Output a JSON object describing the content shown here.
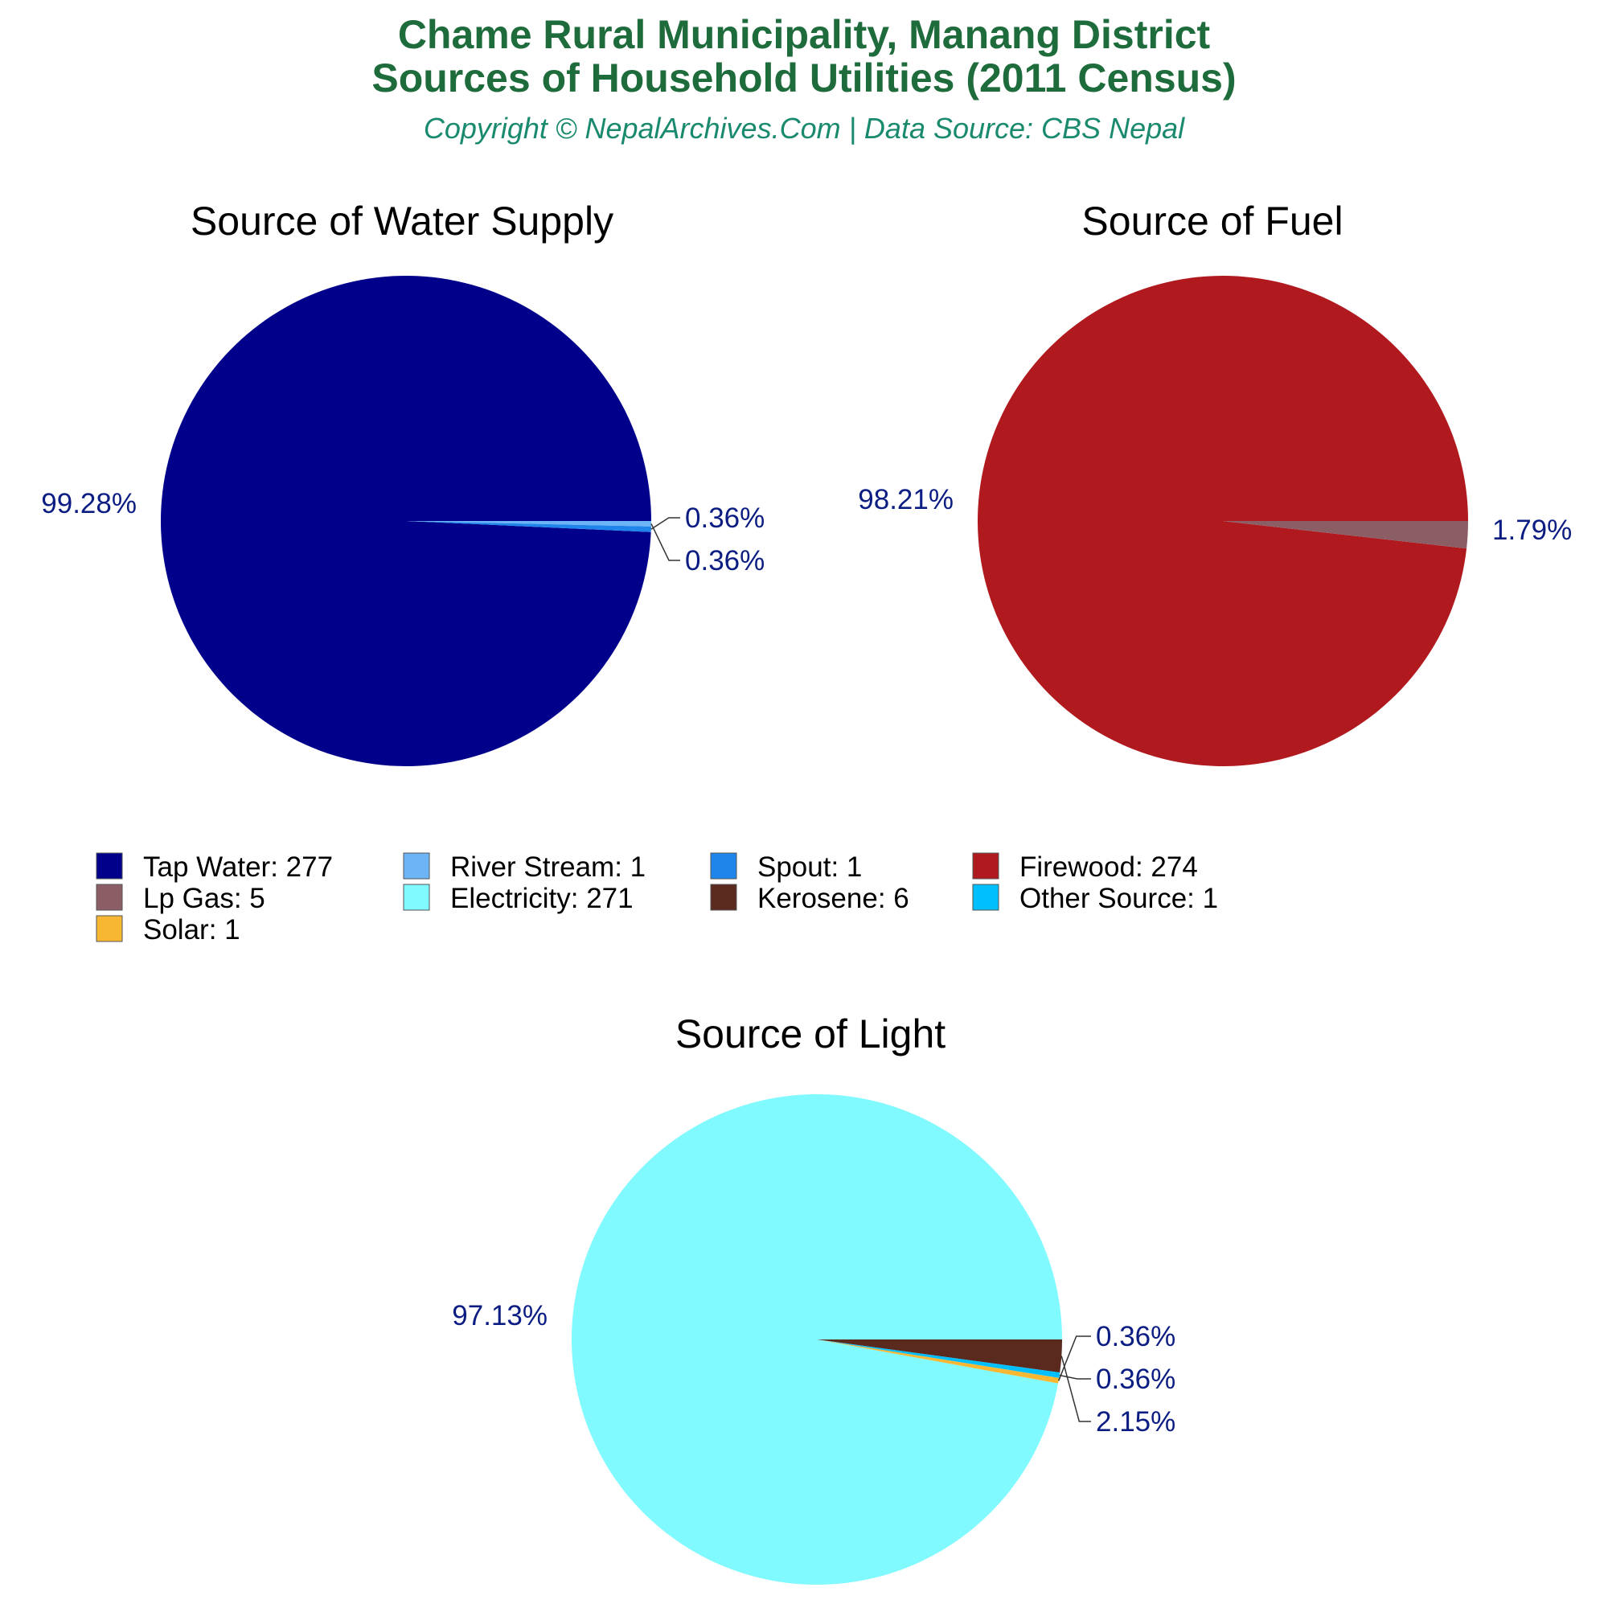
{
  "header": {
    "title_line1": "Chame Rural Municipality, Manang District",
    "title_line2": "Sources of Household Utilities (2011 Census)",
    "copyright": "Copyright © NepalArchives.Com | Data Source: CBS Nepal"
  },
  "colors": {
    "title": "#1e6b3c",
    "copyright": "#1a8a6e",
    "pct_label": "#0b1d82",
    "leader": "#333333"
  },
  "chart_data": [
    {
      "type": "pie",
      "title": "Source of Water Supply",
      "slices": [
        {
          "label": "Tap Water",
          "value": 277,
          "pct_label": "99.28%",
          "color": "#00008b"
        },
        {
          "label": "River Stream",
          "value": 1,
          "pct_label": "0.36%",
          "color": "#6cb4f5"
        },
        {
          "label": "Spout",
          "value": 1,
          "pct_label": "0.36%",
          "color": "#1f85eb"
        }
      ]
    },
    {
      "type": "pie",
      "title": "Source of Fuel",
      "slices": [
        {
          "label": "Firewood",
          "value": 274,
          "pct_label": "98.21%",
          "color": "#b0191e"
        },
        {
          "label": "Lp Gas",
          "value": 5,
          "pct_label": "1.79%",
          "color": "#8b5e66"
        }
      ]
    },
    {
      "type": "pie",
      "title": "Source of Light",
      "slices": [
        {
          "label": "Electricity",
          "value": 271,
          "pct_label": "97.13%",
          "color": "#80f9ff"
        },
        {
          "label": "Kerosene",
          "value": 6,
          "pct_label": "2.15%",
          "color": "#5a2a1e"
        },
        {
          "label": "Other Source",
          "value": 1,
          "pct_label": "0.36%",
          "color": "#00bfff"
        },
        {
          "label": "Solar",
          "value": 1,
          "pct_label": "0.36%",
          "color": "#f7b733"
        }
      ]
    }
  ],
  "legend": {
    "placement": "middle",
    "items": [
      {
        "text": "Tap Water: 277",
        "color": "#00008b"
      },
      {
        "text": "River Stream: 1",
        "color": "#6cb4f5"
      },
      {
        "text": "Spout: 1",
        "color": "#1f85eb"
      },
      {
        "text": "Firewood: 274",
        "color": "#b0191e"
      },
      {
        "text": "Lp Gas: 5",
        "color": "#8b5e66"
      },
      {
        "text": "Electricity: 271",
        "color": "#80f9ff"
      },
      {
        "text": "Kerosene: 6",
        "color": "#5a2a1e"
      },
      {
        "text": "Other Source: 1",
        "color": "#00bfff"
      },
      {
        "text": "Solar: 1",
        "color": "#f7b733"
      }
    ]
  }
}
